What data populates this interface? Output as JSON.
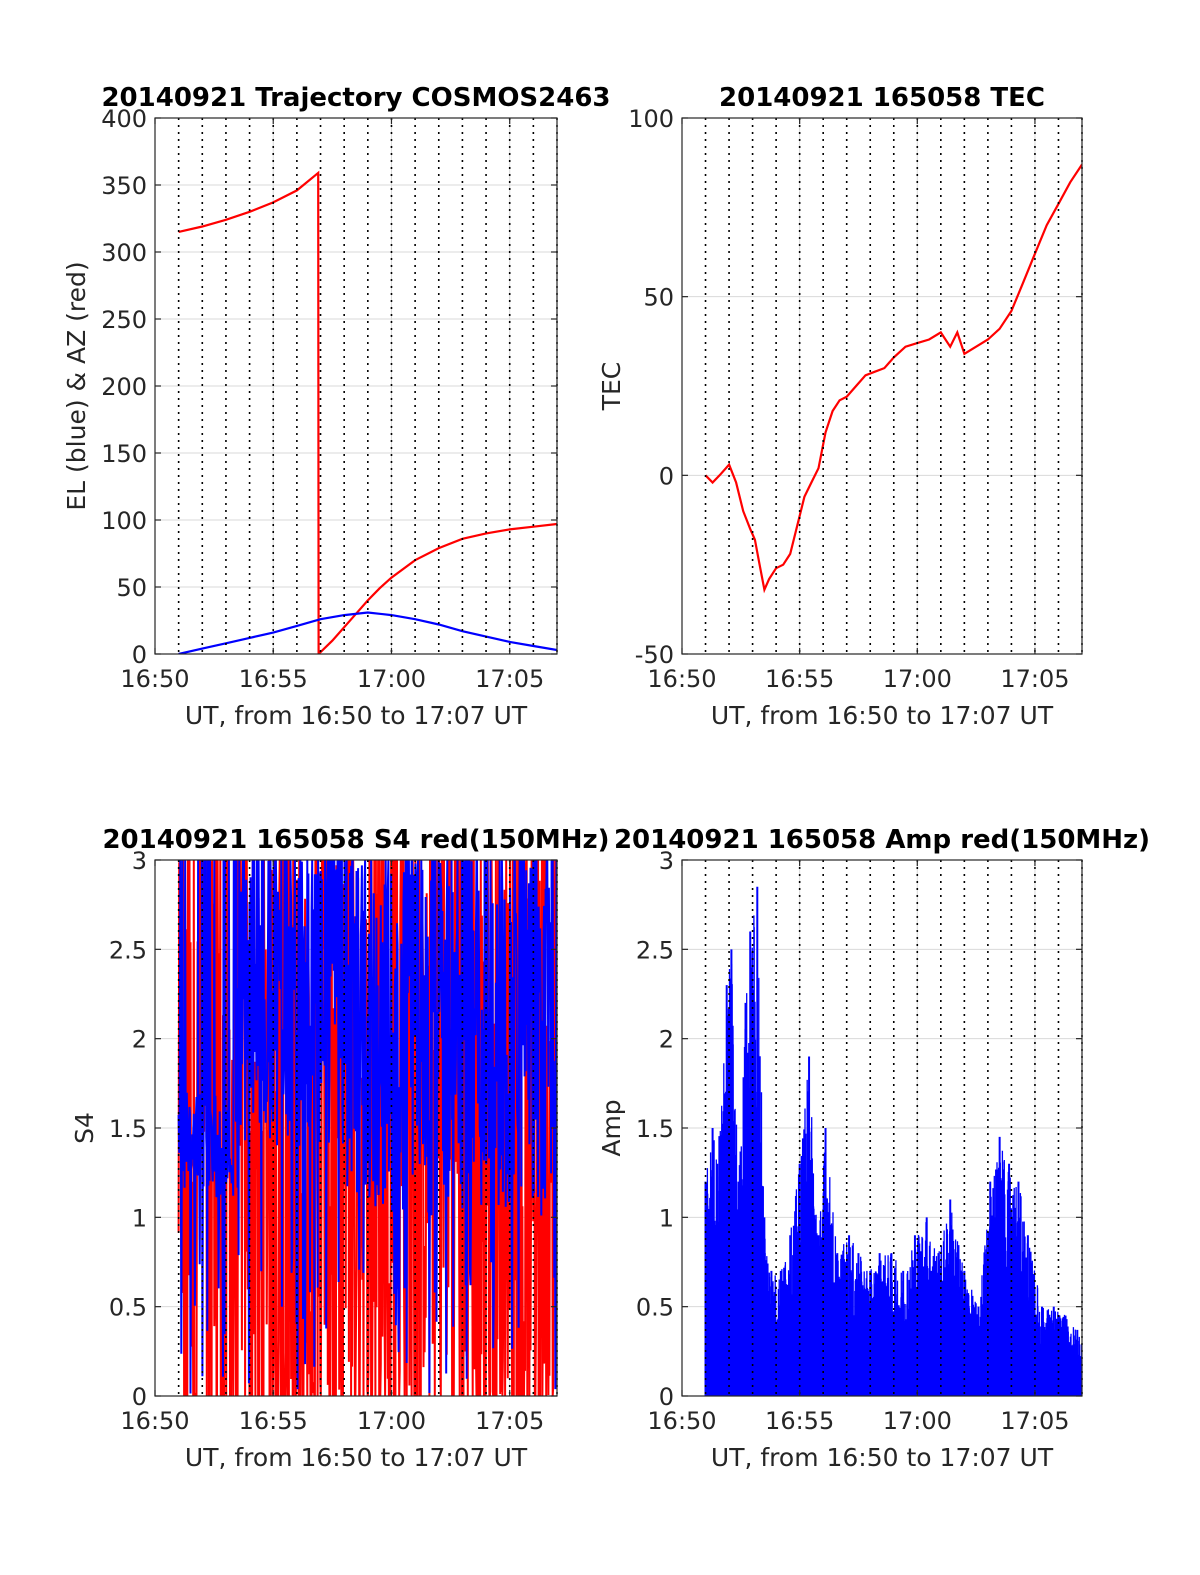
{
  "figure": {
    "colors": {
      "red": "#ff0000",
      "blue": "#0000ff",
      "grid": "#d9d9d9",
      "axis": "#262626"
    },
    "xaxis": {
      "range_minutes": [
        16.85,
        17.12
      ],
      "tick_labels": [
        "16:50",
        "16:55",
        "17:00",
        "17:05"
      ],
      "tick_minutes": [
        0,
        5,
        10,
        15
      ],
      "dotted_gridlines_minutes": [
        0,
        1,
        2,
        3,
        4,
        5,
        6,
        7,
        8,
        9,
        10,
        11,
        12,
        13,
        14,
        15,
        16
      ]
    }
  },
  "chart_data": [
    {
      "id": "trajectory",
      "type": "line",
      "title": "20140921 Trajectory COSMOS2463",
      "xlabel": "UT, from 16:50 to 17:07 UT",
      "ylabel": "EL (blue) & AZ (red)",
      "xlim": [
        "16:50",
        "17:07"
      ],
      "ylim": [
        0,
        400
      ],
      "yticks": [
        0,
        50,
        100,
        150,
        200,
        250,
        300,
        350,
        400
      ],
      "ytick_labels": [
        "0",
        "50",
        "100",
        "150",
        "200",
        "250",
        "300",
        "350",
        "400"
      ],
      "grid": true,
      "series": [
        {
          "color": "#ff0000",
          "x_minutes_after_1650": [
            1.0,
            2.0,
            3.0,
            4.0,
            5.0,
            6.0,
            6.9,
            6.92,
            7.5,
            8.0,
            8.5,
            9.0,
            9.5,
            10.0,
            11.0,
            12.0,
            13.0,
            14.0,
            15.0,
            16.0,
            17.0
          ],
          "y": [
            315,
            319,
            324,
            330,
            337,
            346,
            359,
            0,
            10,
            20,
            30,
            40,
            49,
            57,
            70,
            79,
            86,
            90,
            93,
            95,
            97
          ]
        },
        {
          "color": "#0000ff",
          "x_minutes_after_1650": [
            1.0,
            2.0,
            3.0,
            4.0,
            5.0,
            6.0,
            7.0,
            8.0,
            9.0,
            10.0,
            11.0,
            12.0,
            13.0,
            14.0,
            15.0,
            16.0,
            17.0
          ],
          "y": [
            0,
            4,
            8,
            12,
            16,
            21,
            26,
            29,
            31,
            29,
            26,
            22,
            17,
            13,
            9,
            6,
            3
          ]
        }
      ]
    },
    {
      "id": "tec",
      "type": "line",
      "title": "20140921 165058 TEC",
      "xlabel": "UT, from 16:50 to 17:07 UT",
      "ylabel": "TEC",
      "xlim": [
        "16:50",
        "17:07"
      ],
      "ylim": [
        -50,
        100
      ],
      "yticks": [
        -50,
        0,
        50,
        100
      ],
      "ytick_labels": [
        "-50",
        "0",
        "50",
        "100"
      ],
      "grid": true,
      "series": [
        {
          "color": "#ff0000",
          "x_minutes_after_1650": [
            1.0,
            1.3,
            1.6,
            2.0,
            2.3,
            2.6,
            2.9,
            3.1,
            3.3,
            3.5,
            3.7,
            4.0,
            4.3,
            4.6,
            4.9,
            5.2,
            5.5,
            5.8,
            6.1,
            6.4,
            6.7,
            7.0,
            7.4,
            7.8,
            8.2,
            8.6,
            9.0,
            9.5,
            10.0,
            10.5,
            11.0,
            11.4,
            11.7,
            12.0,
            12.5,
            13.0,
            13.5,
            14.0,
            14.5,
            15.0,
            15.5,
            16.0,
            16.5,
            17.0
          ],
          "y": [
            0,
            -2,
            0,
            3,
            -2,
            -10,
            -15,
            -18,
            -25,
            -32,
            -29,
            -26,
            -25,
            -22,
            -14,
            -6,
            -2,
            2,
            12,
            18,
            21,
            22,
            25,
            28,
            29,
            30,
            33,
            36,
            37,
            38,
            40,
            36,
            40,
            34,
            36,
            38,
            41,
            46,
            54,
            62,
            70,
            76,
            82,
            87
          ]
        }
      ]
    },
    {
      "id": "s4",
      "type": "line",
      "title": "20140921 165058 S4 red(150MHz)",
      "xlabel": "UT, from 16:50 to 17:07 UT",
      "ylabel": "S4",
      "xlim": [
        "16:50",
        "17:07"
      ],
      "ylim": [
        0,
        3
      ],
      "yticks": [
        0,
        0.5,
        1,
        1.5,
        2,
        2.5,
        3
      ],
      "ytick_labels": [
        "0",
        "0.5",
        "1",
        "1.5",
        "2",
        "2.5",
        "3"
      ],
      "grid": true,
      "series": [
        {
          "color": "#ff0000",
          "description_range": [
            0,
            3
          ],
          "x_start_minutes": 1.0,
          "x_end_minutes": 17.0
        },
        {
          "color": "#0000ff",
          "description_range": [
            0.5,
            3
          ],
          "x_start_minutes": 1.0,
          "x_end_minutes": 17.0
        }
      ]
    },
    {
      "id": "amp",
      "type": "line",
      "title": "20140921 165058 Amp red(150MHz)",
      "xlabel": "UT, from 16:50 to 17:07 UT",
      "ylabel": "Amp",
      "xlim": [
        "16:50",
        "17:07"
      ],
      "ylim": [
        0,
        3
      ],
      "yticks": [
        0,
        0.5,
        1,
        1.5,
        2,
        2.5,
        3
      ],
      "ytick_labels": [
        "0",
        "0.5",
        "1",
        "1.5",
        "2",
        "2.5",
        "3"
      ],
      "grid": true,
      "series": [
        {
          "color": "#0000ff",
          "peaks_x_minutes": [
            1.0,
            1.3,
            1.5,
            1.9,
            2.1,
            2.4,
            2.7,
            2.9,
            3.2,
            3.5,
            3.8,
            4.2,
            4.6,
            5.0,
            5.4,
            5.8,
            6.1,
            6.6,
            7.1,
            7.5,
            8.0,
            8.4,
            8.9,
            9.4,
            9.9,
            10.4,
            10.9,
            11.4,
            12.0,
            12.6,
            13.1,
            13.5,
            13.9,
            14.3,
            14.7,
            15.3,
            15.8,
            16.3,
            16.8
          ],
          "peaks_y": [
            1.2,
            1.5,
            1.3,
            2.3,
            2.5,
            1.2,
            2.2,
            2.6,
            2.85,
            1.0,
            0.7,
            0.7,
            0.9,
            1.3,
            1.9,
            0.9,
            1.5,
            0.8,
            0.9,
            0.8,
            0.7,
            0.8,
            0.8,
            0.7,
            0.9,
            1.0,
            0.8,
            1.1,
            0.7,
            0.5,
            1.2,
            1.45,
            1.3,
            1.2,
            0.9,
            0.5,
            0.5,
            0.45,
            0.37
          ]
        }
      ]
    }
  ]
}
